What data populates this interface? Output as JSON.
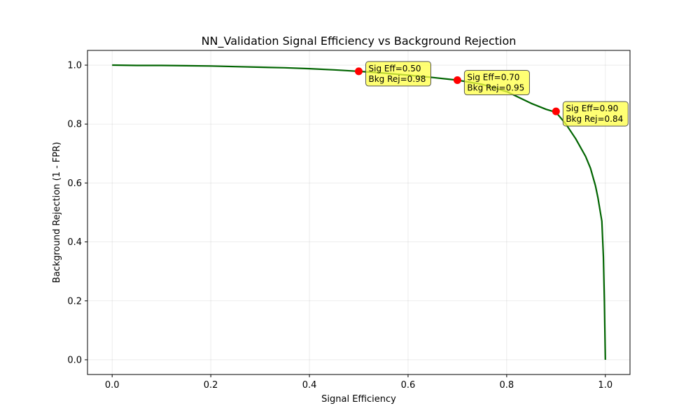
{
  "chart_data": {
    "type": "line",
    "title": "NN_Validation Signal Efficiency vs Background Rejection",
    "xlabel": "Signal Efficiency",
    "ylabel": "Background Rejection (1 - FPR)",
    "xlim": [
      -0.05,
      1.05
    ],
    "ylim": [
      -0.05,
      1.05
    ],
    "xticks": [
      0.0,
      0.2,
      0.4,
      0.6,
      0.8,
      1.0
    ],
    "xtick_labels": [
      "0.0",
      "0.2",
      "0.4",
      "0.6",
      "0.8",
      "1.0"
    ],
    "yticks": [
      0.0,
      0.2,
      0.4,
      0.6,
      0.8,
      1.0
    ],
    "ytick_labels": [
      "0.0",
      "0.2",
      "0.4",
      "0.6",
      "0.8",
      "1.0"
    ],
    "grid": true,
    "line_color": "#006400",
    "marker_color": "#ff0000",
    "annotation_bg": "#ffff44",
    "series": [
      {
        "x": [
          0.0,
          0.05,
          0.1,
          0.15,
          0.2,
          0.25,
          0.3,
          0.35,
          0.4,
          0.45,
          0.5,
          0.55,
          0.6,
          0.65,
          0.7,
          0.75,
          0.8,
          0.85,
          0.88,
          0.9,
          0.92,
          0.94,
          0.96,
          0.97,
          0.98,
          0.985,
          0.99,
          0.993,
          0.996,
          0.998,
          0.999,
          1.0
        ],
        "y": [
          1.0,
          0.999,
          0.999,
          0.998,
          0.997,
          0.995,
          0.993,
          0.991,
          0.988,
          0.984,
          0.979,
          0.973,
          0.966,
          0.958,
          0.949,
          0.935,
          0.91,
          0.87,
          0.85,
          0.84,
          0.8,
          0.75,
          0.69,
          0.65,
          0.59,
          0.55,
          0.5,
          0.47,
          0.35,
          0.2,
          0.1,
          0.0
        ]
      }
    ],
    "annotations": [
      {
        "x": 0.5,
        "y": 0.979,
        "line1": "Sig Eff=0.50",
        "line2": "Bkg Rej=0.98"
      },
      {
        "x": 0.7,
        "y": 0.949,
        "line1": "Sig Eff=0.70",
        "line2": "Bkg Rej=0.95"
      },
      {
        "x": 0.9,
        "y": 0.843,
        "line1": "Sig Eff=0.90",
        "line2": "Bkg Rej=0.84"
      }
    ]
  }
}
